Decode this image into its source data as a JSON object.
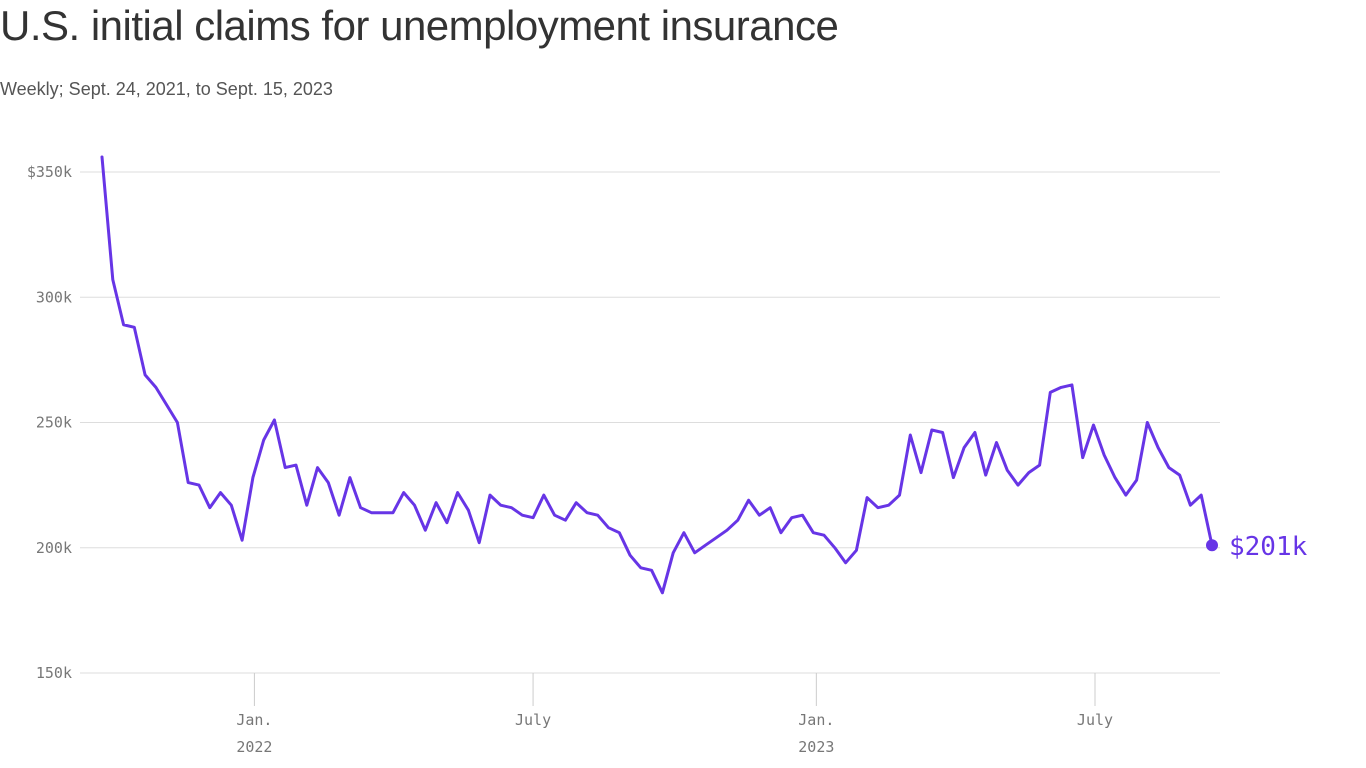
{
  "chart_data": {
    "type": "line",
    "title": "U.S. initial claims for unemployment insurance",
    "subtitle": "Weekly; Sept. 24, 2021, to Sept. 15, 2023",
    "xlabel": "",
    "ylabel": "",
    "x_start": "2021-09-24",
    "x_end": "2023-09-15",
    "x_step_days": 7,
    "ylim": [
      150,
      360
    ],
    "y_ticks": [
      {
        "value": 350,
        "label": "$350k"
      },
      {
        "value": 300,
        "label": "300k"
      },
      {
        "value": 250,
        "label": "250k"
      },
      {
        "value": 200,
        "label": "200k"
      },
      {
        "value": 150,
        "label": "150k"
      }
    ],
    "x_ticks": [
      {
        "date": "2022-01-01",
        "label": "Jan.",
        "sublabel": "2022"
      },
      {
        "date": "2022-07-01",
        "label": "July",
        "sublabel": ""
      },
      {
        "date": "2023-01-01",
        "label": "Jan.",
        "sublabel": "2023"
      },
      {
        "date": "2023-07-01",
        "label": "July",
        "sublabel": ""
      }
    ],
    "grid": true,
    "line_color": "#6735e6",
    "end_label": "$201k",
    "series": [
      {
        "values": [
          356,
          307,
          289,
          288,
          269,
          264,
          257,
          250,
          226,
          225,
          216,
          222,
          217,
          203,
          228,
          243,
          251,
          232,
          233,
          217,
          232,
          226,
          213,
          228,
          216,
          214,
          214,
          214,
          222,
          217,
          207,
          218,
          210,
          222,
          215,
          202,
          221,
          217,
          216,
          213,
          212,
          221,
          213,
          211,
          218,
          214,
          213,
          208,
          206,
          197,
          192,
          191,
          182,
          198,
          206,
          198,
          201,
          204,
          207,
          211,
          219,
          213,
          216,
          206,
          212,
          213,
          206,
          205,
          200,
          194,
          199,
          220,
          216,
          217,
          221,
          245,
          230,
          247,
          246,
          228,
          240,
          246,
          229,
          242,
          231,
          225,
          230,
          233,
          262,
          264,
          265,
          236,
          249,
          237,
          228,
          221,
          227,
          250,
          240,
          232,
          229,
          217,
          221,
          201
        ]
      }
    ]
  }
}
